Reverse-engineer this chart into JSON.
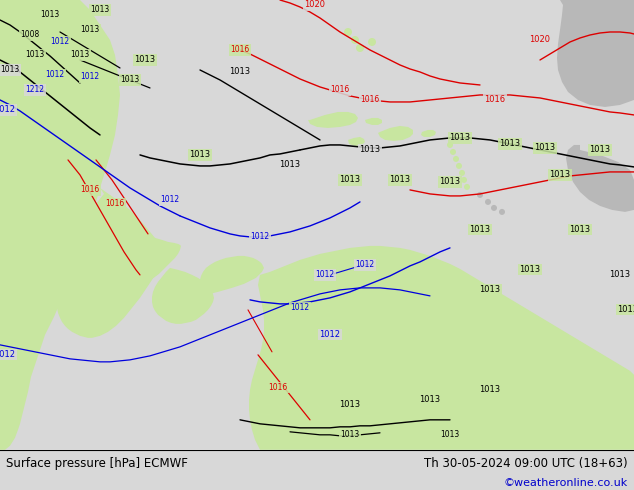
{
  "title_left": "Surface pressure [hPa] ECMWF",
  "title_right": "Th 30-05-2024 09:00 UTC (18+63)",
  "credit": "©weatheronline.co.uk",
  "bg_color": "#d8d8d8",
  "land_green": "#c8e6a0",
  "land_gray": "#b8b8b8",
  "sea_color": "#d8d8d8",
  "bar_color": "#ffffff",
  "credit_color": "#0000cc",
  "black": "#000000",
  "blue": "#0000dd",
  "red": "#dd0000",
  "figsize": [
    6.34,
    4.9
  ],
  "dpi": 100
}
